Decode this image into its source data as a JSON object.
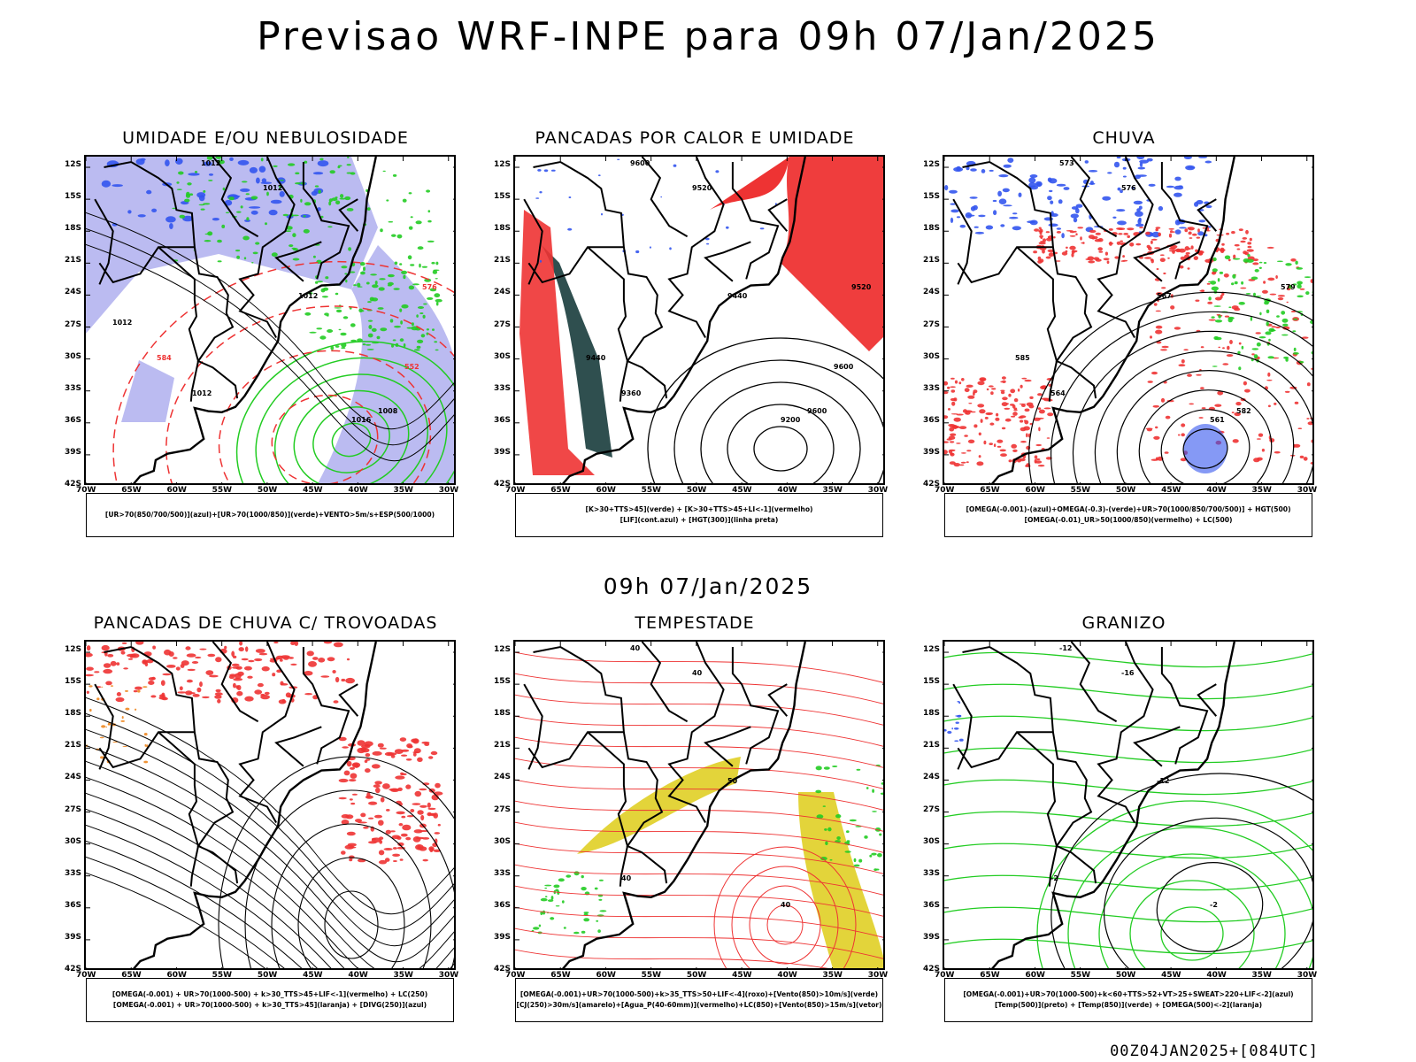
{
  "header": {
    "title": "Previsao WRF-INPE  para 09h 07/Jan/2025",
    "mid_label": "09h 07/Jan/2025",
    "footer": "00Z04JAN2025+[084UTC]"
  },
  "axes": {
    "latitudes": [
      "12S",
      "15S",
      "18S",
      "21S",
      "24S",
      "27S",
      "30S",
      "33S",
      "36S",
      "39S",
      "42S"
    ],
    "longitudes": [
      "70W",
      "65W",
      "60W",
      "55W",
      "50W",
      "45W",
      "40W",
      "35W",
      "30W"
    ]
  },
  "colors": {
    "blue": "#3355ee",
    "green": "#22cc22",
    "red": "#ee3333",
    "lavender": "#aaaaee",
    "yellow": "#e3d43a",
    "darkgreen": "#2f4f4f",
    "orange": "#ee8822"
  },
  "panels": [
    {
      "title": "UMIDADE E/OU NEBULOSIDADE",
      "legend": [
        "[UR>70(850/700/500)](azul)+[UR>70(1000/850)](verde)+VENTO>5m/s+ESP(500/1000)"
      ],
      "contour_labels": [
        "1012",
        "1012",
        "1012",
        "1012",
        "1016",
        "1008",
        "576",
        "584",
        "552",
        "1012"
      ]
    },
    {
      "title": "PANCADAS POR CALOR E UMIDADE",
      "legend": [
        "[K>30+TTS>45](verde) + [K>30+TTS>45+LI<-1](vermelho)",
        "[LIF](cont.azul) + [HGT(300)](linha preta)"
      ],
      "contour_labels": [
        "9600",
        "9520",
        "9440",
        "9360",
        "9200",
        "9600",
        "9520",
        "9440",
        "9600"
      ]
    },
    {
      "title": "CHUVA",
      "legend": [
        "[OMEGA(-0.001)-(azul)+OMEGA(-0.3)-(verde)+UR>70(1000/850/700/500)] + HGT(500)",
        "[OMEGA(-0.01)_UR>50(1000/850)(vermelho) + LC(500)"
      ],
      "contour_labels": [
        "573",
        "576",
        "567",
        "564",
        "561",
        "582",
        "579",
        "585"
      ]
    },
    {
      "title": "PANCADAS DE CHUVA C/ TROVOADAS",
      "legend": [
        "[OMEGA(-0.001) + UR>70(1000-500) + k>30_TTS>45+LIF<-1](vermelho) + LC(250)",
        "[OMEGA(-0.001) + UR>70(1000-500) + k>30_TTS>45](laranja) + [DIVG(250)](azul)"
      ],
      "contour_labels": []
    },
    {
      "title": "TEMPESTADE",
      "legend": [
        "[OMEGA(-0.001)+UR>70(1000-500)+k>35_TTS>50+LIF<-4](roxo)+[Vento(850)>10m/s](verde)",
        "[CJ(250)>30m/s](amarelo)+[Agua_P(40-60mm)](vermelho)+LC(850)+[Vento(850)>15m/s](vetor)"
      ],
      "contour_labels": [
        "40",
        "40",
        "50",
        "40",
        "40"
      ]
    },
    {
      "title": "GRANIZO",
      "legend": [
        "[OMEGA(-0.001)+UR>70(1000-500)+k<60+TTS>52+VT>25+SWEAT>220+LIF<-2](azul)",
        "[Temp(500)](preto) + [Temp(850)](verde) + [OMEGA(500)<-2](laranja)"
      ],
      "contour_labels": [
        "-12",
        "-16",
        "-12",
        "-2",
        "-2"
      ]
    }
  ]
}
